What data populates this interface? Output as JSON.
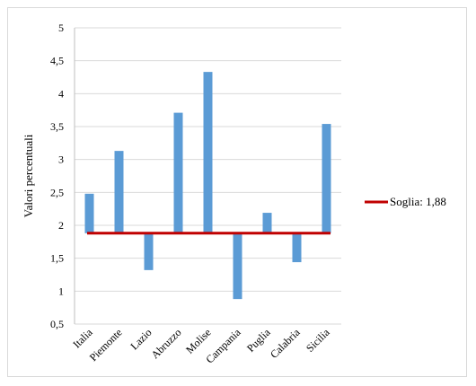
{
  "chart_data": {
    "type": "bar",
    "categories": [
      "Italia",
      "Piemonte",
      "Lazio",
      "Abruzzo",
      "Molise",
      "Campania",
      "Puglia",
      "Calabria",
      "Sicilia"
    ],
    "values": [
      2.48,
      3.13,
      1.32,
      3.71,
      4.33,
      0.88,
      2.19,
      1.44,
      3.54
    ],
    "baseline": 1.88,
    "ylabel": "Valori percentuali",
    "ylim": [
      0.5,
      5
    ],
    "yticks": [
      "0,5",
      "1",
      "1,5",
      "2",
      "2,5",
      "3",
      "3,5",
      "4",
      "4,5",
      "5"
    ],
    "ytick_values": [
      0.5,
      1,
      1.5,
      2,
      2.5,
      3,
      3.5,
      4,
      4.5,
      5
    ],
    "grid": true,
    "legend_position": "right",
    "threshold": {
      "label": "Soglia: 1,88",
      "value": 1.88
    },
    "colors": {
      "bar": "#5b9bd5",
      "threshold": "#c00000",
      "grid": "#d9d9d9",
      "axis": "#bfbfbf"
    }
  }
}
